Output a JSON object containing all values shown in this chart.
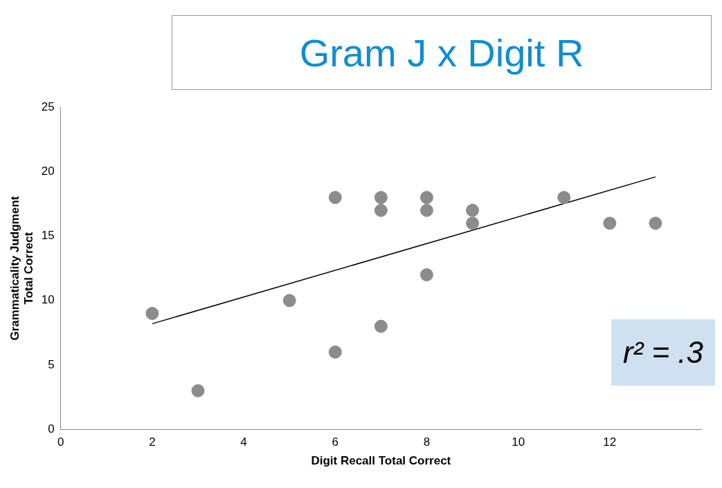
{
  "chart_data": {
    "type": "scatter",
    "title": "Gram J x Digit R",
    "xlabel": "Digit Recall Total Correct",
    "ylabel": "Grammaticality Judgment\nTotal Correct",
    "series": [
      {
        "type": "scatter",
        "color": "#8c8c8c",
        "x": [
          2,
          3,
          5,
          6,
          6,
          7,
          7,
          7,
          8,
          8,
          8,
          9,
          9,
          11,
          12,
          13
        ],
        "values": [
          9,
          3,
          10,
          18,
          6,
          18,
          17,
          8,
          18,
          17,
          12,
          17,
          16,
          18,
          16,
          16
        ]
      },
      {
        "type": "line",
        "color": "#000000",
        "x": [
          2,
          13
        ],
        "values": [
          8.2,
          19.6
        ],
        "marker": "none"
      }
    ],
    "xlim": [
      0,
      14
    ],
    "xticks": [
      0,
      2,
      4,
      6,
      8,
      10,
      12
    ],
    "ylim": [
      0,
      25
    ],
    "yticks": [
      0,
      5,
      10,
      15,
      20,
      25
    ],
    "grid": false,
    "legend": false,
    "marker": "circle",
    "annotations": [
      "r² = .3"
    ]
  }
}
